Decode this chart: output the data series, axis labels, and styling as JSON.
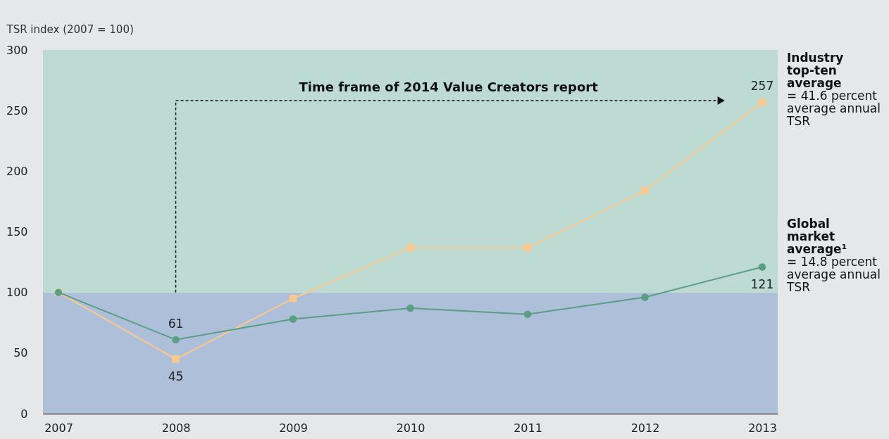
{
  "chart_data": {
    "type": "line",
    "ylabel": "TSR index (2007 = 100)",
    "categories": [
      "2007",
      "2008",
      "2009",
      "2010",
      "2011",
      "2012",
      "2013"
    ],
    "series": [
      {
        "name": "Industry top-ten average",
        "color": "#fbc98e",
        "marker": "square",
        "values": [
          100,
          45,
          95,
          137,
          137,
          184,
          257
        ],
        "value_labels": [
          null,
          "45",
          null,
          null,
          null,
          null,
          "257"
        ]
      },
      {
        "name": "Global market average¹",
        "color": "#5a9e84",
        "marker": "circle",
        "values": [
          100,
          61,
          78,
          87,
          82,
          96,
          121
        ],
        "value_labels": [
          null,
          "61",
          null,
          null,
          null,
          null,
          "121"
        ]
      }
    ],
    "annotations": [
      "= 41.6 percent average annual TSR",
      "= 14.8 percent average annual TSR",
      "Time frame of 2014 Value Creators report"
    ],
    "ref_lines": [
      {
        "axis": "x",
        "value": "2008",
        "color": "#111111",
        "line_style": "dashed"
      }
    ],
    "bands": [
      {
        "axis": "y",
        "from": 0,
        "to": 100,
        "color": "#adbfd9"
      },
      {
        "axis": "y",
        "from": 100,
        "to": 300,
        "color": "#bddbd3"
      }
    ],
    "ylim": [
      0,
      300
    ],
    "yticks": [
      0,
      50,
      100,
      150,
      200,
      250,
      300
    ],
    "grid": false,
    "legend": false,
    "line_style": "solid"
  }
}
